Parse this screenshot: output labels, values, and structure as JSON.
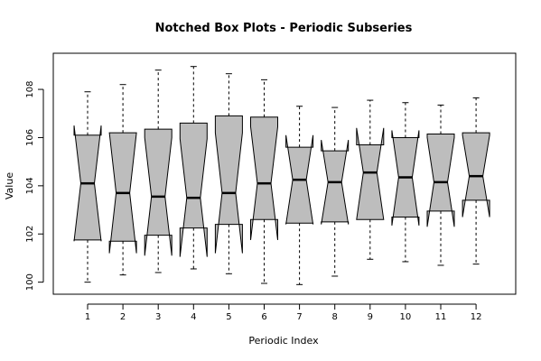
{
  "chart_data": {
    "type": "boxplot",
    "title": "Notched Box Plots - Periodic Subseries",
    "xlabel": "Periodic Index",
    "ylabel": "Value",
    "ylim": [
      99.5,
      109.5
    ],
    "yticks": [
      100,
      102,
      104,
      106,
      108
    ],
    "categories": [
      "1",
      "2",
      "3",
      "4",
      "5",
      "6",
      "7",
      "8",
      "9",
      "10",
      "11",
      "12"
    ],
    "colors": {
      "box_fill": "#bdbdbd",
      "stroke": "#000000"
    },
    "boxes": [
      {
        "min": 100.0,
        "q1": 101.75,
        "median": 104.1,
        "q3": 106.1,
        "max": 107.9,
        "notch_lo": 101.7,
        "notch_hi": 106.5
      },
      {
        "min": 100.3,
        "q1": 101.7,
        "median": 103.7,
        "q3": 106.2,
        "max": 108.2,
        "notch_lo": 101.2,
        "notch_hi": 106.2
      },
      {
        "min": 100.4,
        "q1": 101.95,
        "median": 103.55,
        "q3": 106.35,
        "max": 108.8,
        "notch_lo": 101.1,
        "notch_hi": 106.0
      },
      {
        "min": 100.55,
        "q1": 102.25,
        "median": 103.5,
        "q3": 106.6,
        "max": 108.95,
        "notch_lo": 101.05,
        "notch_hi": 105.95
      },
      {
        "min": 100.35,
        "q1": 102.4,
        "median": 103.7,
        "q3": 106.9,
        "max": 108.65,
        "notch_lo": 101.2,
        "notch_hi": 106.2
      },
      {
        "min": 99.95,
        "q1": 102.6,
        "median": 104.1,
        "q3": 106.85,
        "max": 108.4,
        "notch_lo": 101.75,
        "notch_hi": 106.45
      },
      {
        "min": 99.9,
        "q1": 102.45,
        "median": 104.25,
        "q3": 105.6,
        "max": 107.3,
        "notch_lo": 102.4,
        "notch_hi": 106.1
      },
      {
        "min": 100.25,
        "q1": 102.5,
        "median": 104.15,
        "q3": 105.45,
        "max": 107.25,
        "notch_lo": 102.4,
        "notch_hi": 105.9
      },
      {
        "min": 100.95,
        "q1": 102.6,
        "median": 104.55,
        "q3": 105.7,
        "max": 107.55,
        "notch_lo": 102.6,
        "notch_hi": 106.4
      },
      {
        "min": 100.85,
        "q1": 102.7,
        "median": 104.35,
        "q3": 106.0,
        "max": 107.45,
        "notch_lo": 102.35,
        "notch_hi": 106.3
      },
      {
        "min": 100.7,
        "q1": 102.95,
        "median": 104.15,
        "q3": 106.15,
        "max": 107.35,
        "notch_lo": 102.3,
        "notch_hi": 106.0
      },
      {
        "min": 100.75,
        "q1": 103.4,
        "median": 104.4,
        "q3": 106.2,
        "max": 107.65,
        "notch_lo": 102.7,
        "notch_hi": 106.1
      }
    ]
  }
}
